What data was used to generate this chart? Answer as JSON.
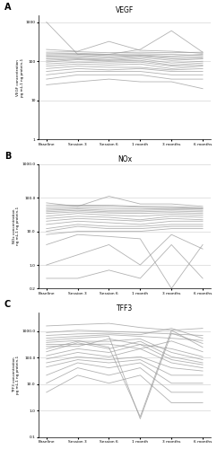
{
  "x_labels": [
    "Baseline",
    "Session 3",
    "Session 6",
    "1 month",
    "3 months",
    "6 months"
  ],
  "panel_A_title": "VEGF",
  "panel_B_title": "NOx",
  "panel_C_title": "TFF3",
  "ylabel_A": "VEGF concentration\npg mL-1 ng protein-1",
  "ylabel_B": "NOx concentration\nng mL-1 ng protein-1",
  "ylabel_C": "TFF3 concentration\npg mL-1 ng protein-1",
  "vegf_data": [
    [
      1000,
      150,
      150,
      200,
      600,
      170
    ],
    [
      200,
      180,
      320,
      190,
      180,
      160
    ],
    [
      170,
      175,
      165,
      170,
      165,
      170
    ],
    [
      155,
      160,
      150,
      155,
      150,
      140
    ],
    [
      145,
      150,
      140,
      145,
      135,
      150
    ],
    [
      135,
      140,
      130,
      140,
      125,
      130
    ],
    [
      125,
      130,
      120,
      135,
      115,
      120
    ],
    [
      115,
      120,
      110,
      125,
      105,
      115
    ],
    [
      105,
      115,
      105,
      115,
      90,
      100
    ],
    [
      95,
      110,
      100,
      105,
      80,
      90
    ],
    [
      85,
      95,
      90,
      95,
      75,
      80
    ],
    [
      75,
      85,
      80,
      85,
      65,
      75
    ],
    [
      65,
      75,
      70,
      70,
      60,
      65
    ],
    [
      55,
      65,
      60,
      65,
      55,
      55
    ],
    [
      45,
      55,
      55,
      55,
      45,
      45
    ],
    [
      35,
      45,
      45,
      45,
      35,
      35
    ],
    [
      25,
      30,
      35,
      30,
      30,
      20
    ]
  ],
  "nox_data": [
    [
      70,
      55,
      110,
      65,
      65,
      55
    ],
    [
      60,
      60,
      60,
      55,
      55,
      50
    ],
    [
      52,
      56,
      55,
      52,
      50,
      48
    ],
    [
      46,
      50,
      48,
      46,
      48,
      46
    ],
    [
      42,
      46,
      42,
      42,
      44,
      42
    ],
    [
      38,
      42,
      38,
      38,
      40,
      38
    ],
    [
      34,
      38,
      35,
      34,
      36,
      34
    ],
    [
      28,
      34,
      30,
      28,
      32,
      30
    ],
    [
      24,
      28,
      26,
      22,
      28,
      26
    ],
    [
      20,
      24,
      22,
      20,
      24,
      22
    ],
    [
      16,
      20,
      18,
      16,
      20,
      20
    ],
    [
      12,
      16,
      14,
      14,
      16,
      16
    ],
    [
      10,
      14,
      12,
      12,
      14,
      14
    ],
    [
      8,
      10,
      10,
      10,
      12,
      12
    ],
    [
      4,
      8,
      7,
      6,
      0.2,
      4
    ],
    [
      1,
      2,
      4,
      1,
      8,
      3
    ],
    [
      0.4,
      0.4,
      0.7,
      0.4,
      4,
      0.4
    ]
  ],
  "tff3_data": [
    [
      1600,
      1800,
      2000,
      1400,
      1100,
      1300
    ],
    [
      900,
      1100,
      1000,
      900,
      800,
      700
    ],
    [
      700,
      800,
      850,
      750,
      1300,
      550
    ],
    [
      550,
      650,
      750,
      650,
      550,
      450
    ],
    [
      450,
      550,
      650,
      0.5,
      850,
      350
    ],
    [
      380,
      450,
      250,
      0.6,
      1100,
      250
    ],
    [
      320,
      320,
      330,
      220,
      430,
      170
    ],
    [
      270,
      270,
      520,
      320,
      220,
      110
    ],
    [
      220,
      420,
      420,
      520,
      160,
      85
    ],
    [
      170,
      370,
      220,
      420,
      110,
      65
    ],
    [
      120,
      220,
      160,
      320,
      85,
      55
    ],
    [
      90,
      160,
      110,
      220,
      65,
      42
    ],
    [
      65,
      110,
      85,
      110,
      42,
      32
    ],
    [
      45,
      85,
      65,
      85,
      22,
      22
    ],
    [
      22,
      65,
      42,
      65,
      11,
      11
    ],
    [
      11,
      42,
      22,
      42,
      5,
      5
    ],
    [
      5,
      22,
      11,
      22,
      2,
      2
    ]
  ],
  "line_color": "#999999",
  "line_alpha": 0.75,
  "line_width": 0.6,
  "bg_color": "#ffffff",
  "vegf_ylim": [
    1,
    1500
  ],
  "vegf_yticks": [
    1,
    10,
    100,
    1000
  ],
  "nox_ylim": [
    0.2,
    1000
  ],
  "nox_yticks": [
    0.2,
    1,
    10,
    100,
    1000
  ],
  "tff3_ylim": [
    0.1,
    5000
  ],
  "tff3_yticks": [
    0.1,
    1,
    10,
    100,
    1000
  ]
}
